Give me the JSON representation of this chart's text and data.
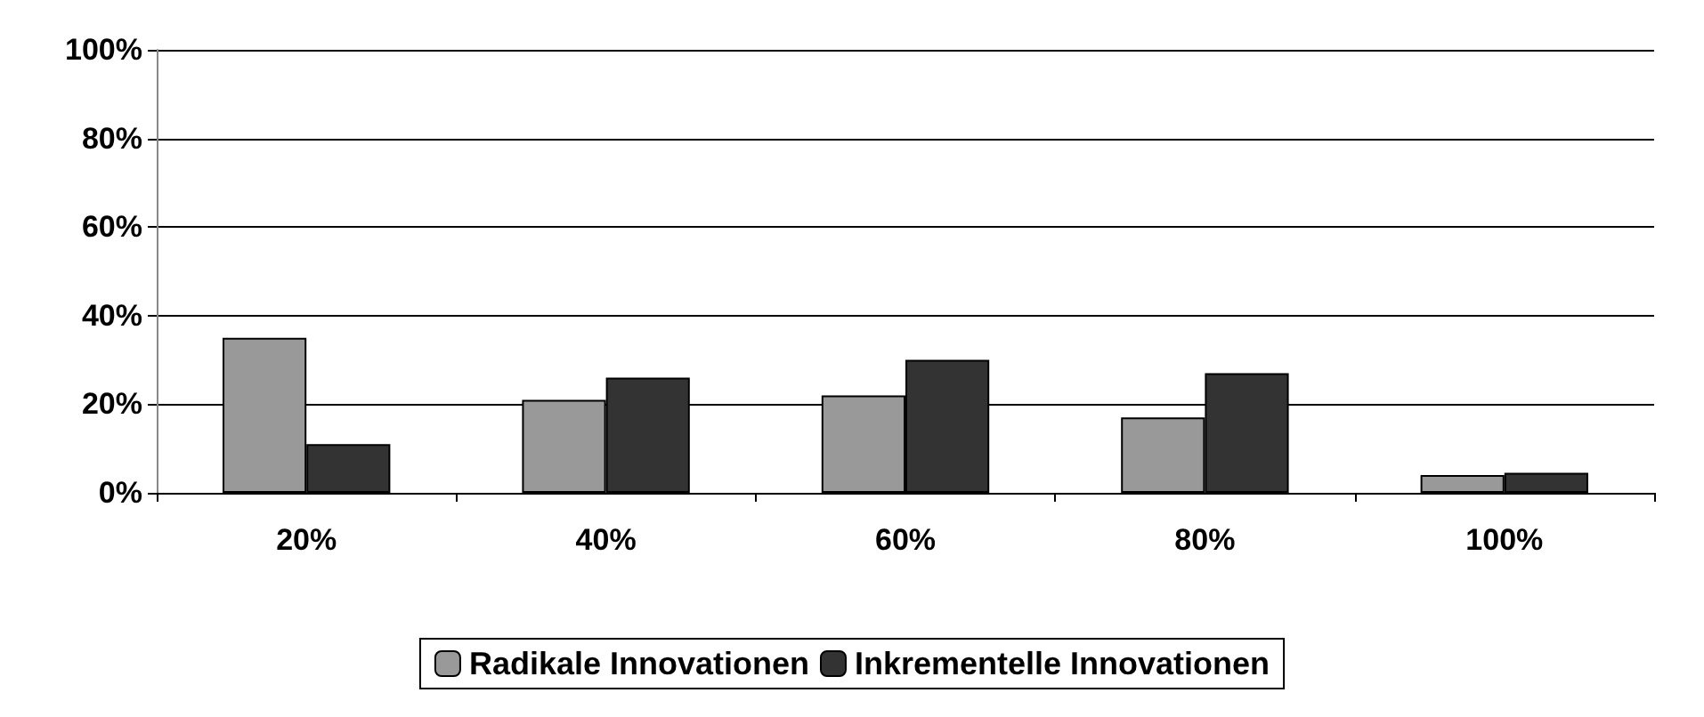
{
  "chart_data": {
    "type": "bar",
    "categories": [
      "20%",
      "40%",
      "60%",
      "80%",
      "100%"
    ],
    "series": [
      {
        "name": "Radikale Innovationen",
        "color": "#999999",
        "values": [
          35,
          21,
          22,
          17,
          4
        ]
      },
      {
        "name": "Inkrementelle Innovationen",
        "color": "#333333",
        "values": [
          11,
          26,
          30,
          27,
          4.5
        ]
      }
    ],
    "ylim": [
      0,
      100
    ],
    "yticks": [
      {
        "value": 0,
        "label": "0%"
      },
      {
        "value": 20,
        "label": "20%"
      },
      {
        "value": 40,
        "label": "40%"
      },
      {
        "value": 60,
        "label": "60%"
      },
      {
        "value": 80,
        "label": "80%"
      },
      {
        "value": 100,
        "label": "100%"
      }
    ],
    "grid": "y",
    "legend": "bottom"
  }
}
